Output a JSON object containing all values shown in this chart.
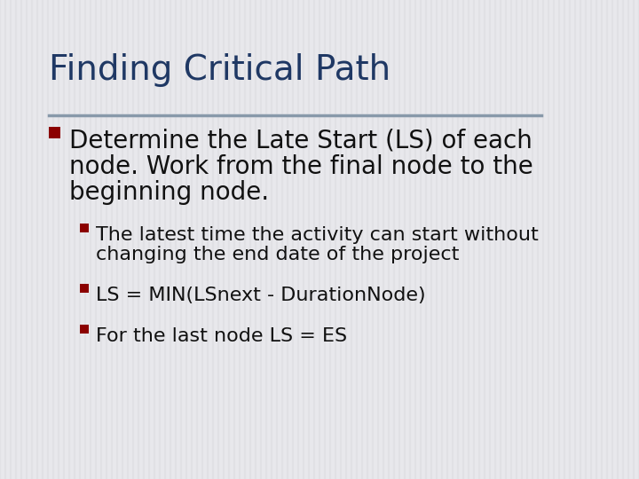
{
  "title": "Finding Critical Path",
  "title_color": "#1F3864",
  "title_fontsize": 28,
  "background_color": "#E8E8EC",
  "divider_color": "#8899AA",
  "bullet_color": "#8B0000",
  "bullet1_text_lines": [
    "Determine the Late Start (LS) of each",
    "node. Work from the final node to the",
    "beginning node."
  ],
  "bullet1_fontsize": 20,
  "bullet1_color": "#111111",
  "sub_bullets": [
    [
      "The latest time the activity can start without",
      "changing the end date of the project"
    ],
    [
      "LS = MIN(LSnext - DurationNode)"
    ],
    [
      "For the last node LS = ES"
    ]
  ],
  "sub_bullet_fontsize": 16,
  "sub_bullet_color": "#111111"
}
